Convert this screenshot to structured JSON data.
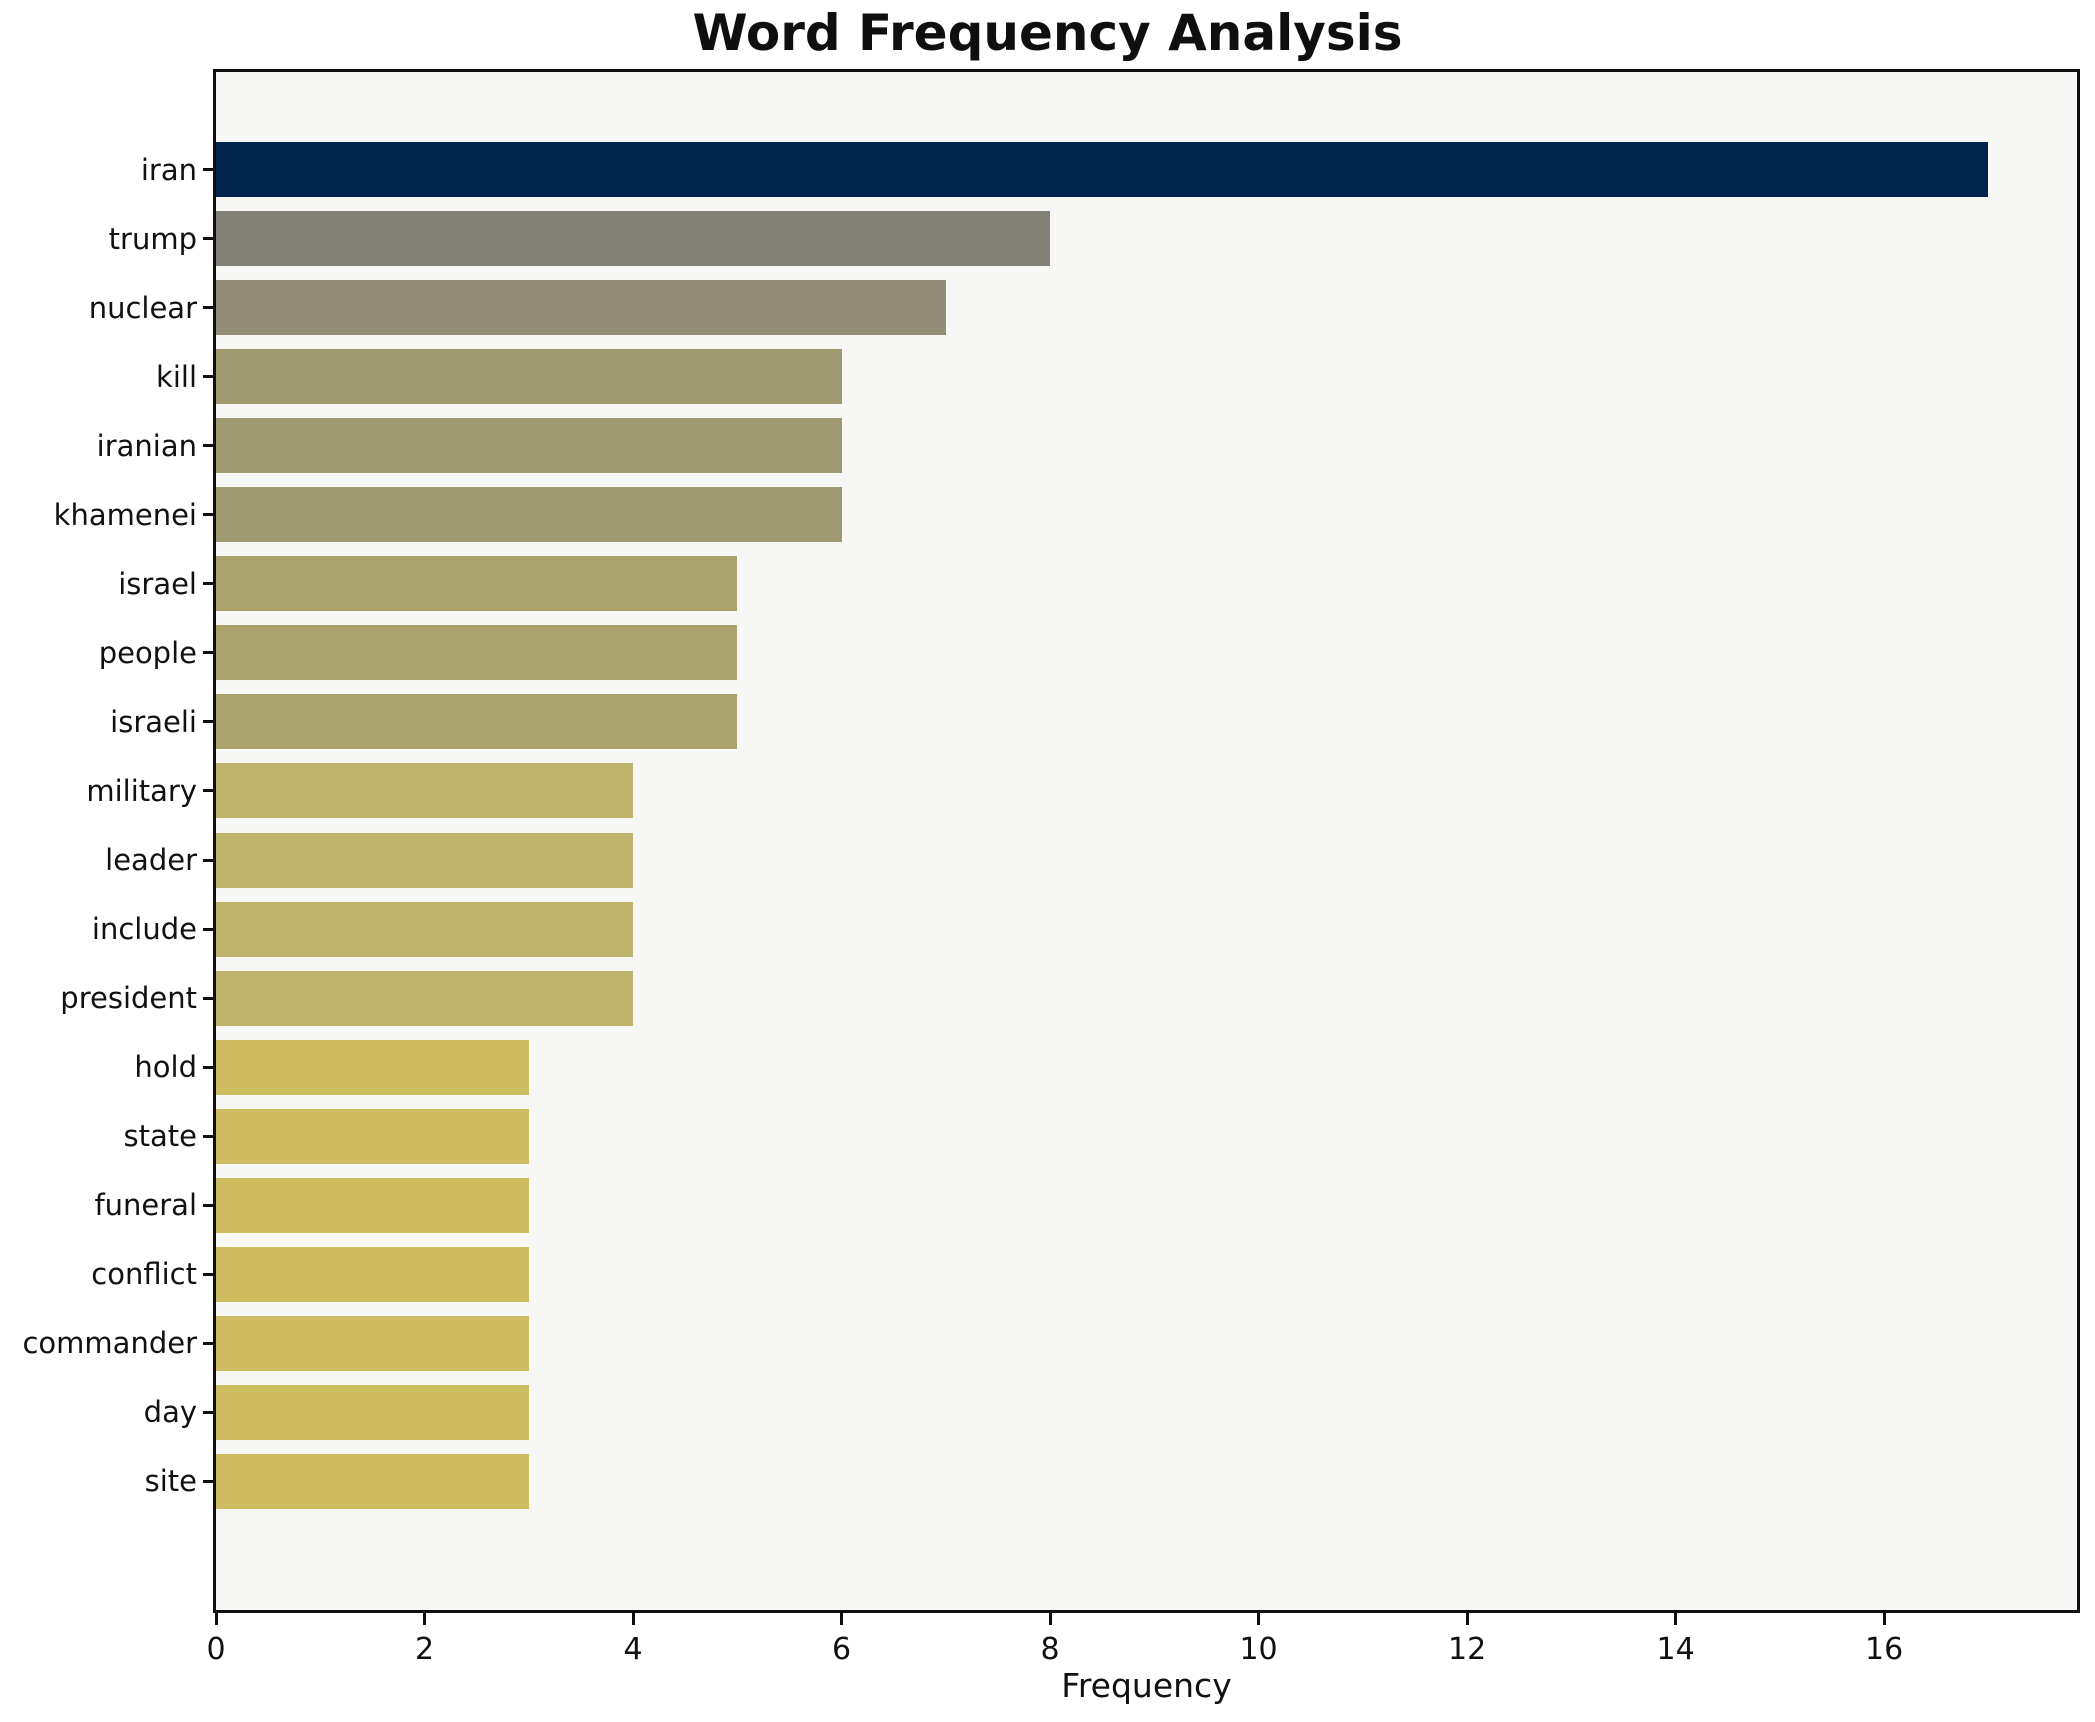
{
  "title": "Word Frequency Analysis",
  "chart_data": {
    "type": "bar",
    "orientation": "horizontal",
    "title": "Word Frequency Analysis",
    "xlabel": "Frequency",
    "ylabel": "",
    "categories": [
      "iran",
      "trump",
      "nuclear",
      "kill",
      "iranian",
      "khamenei",
      "israel",
      "people",
      "israeli",
      "military",
      "leader",
      "include",
      "president",
      "hold",
      "state",
      "funeral",
      "conflict",
      "commander",
      "day",
      "site"
    ],
    "values": [
      17,
      8,
      7,
      6,
      6,
      6,
      5,
      5,
      5,
      4,
      4,
      4,
      4,
      3,
      3,
      3,
      3,
      3,
      3,
      3
    ],
    "bar_colors": [
      "#02234d",
      "#838078",
      "#938d78",
      "#a09a72",
      "#a09a72",
      "#a09a72",
      "#aba36e",
      "#aba36e",
      "#aba36e",
      "#bfb46b",
      "#bfb46b",
      "#bfb46b",
      "#bfb46b",
      "#cdbd60",
      "#cdbd60",
      "#cdbd60",
      "#cdbd60",
      "#cdbd60",
      "#cdbd60",
      "#cdbd60"
    ],
    "x_ticks": [
      0,
      2,
      4,
      6,
      8,
      10,
      12,
      14,
      16
    ],
    "xlim": [
      0,
      17.85
    ],
    "grid": false,
    "legend": null,
    "plot_background": "#f7f7f5",
    "figure_background": "#ffffff",
    "spine_color": "#0f0f0f",
    "text_color": "#111111"
  }
}
